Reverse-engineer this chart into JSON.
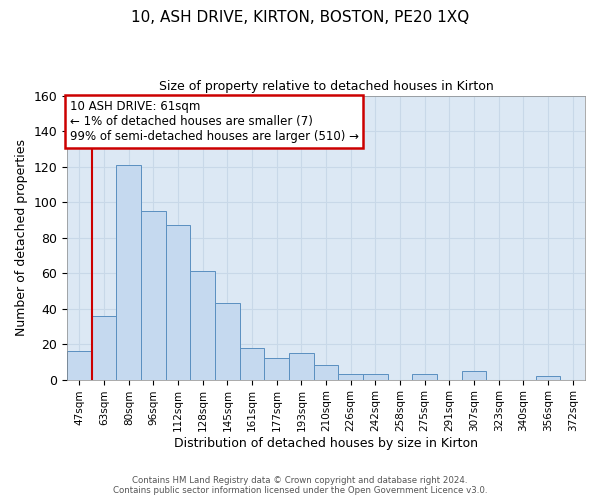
{
  "title": "10, ASH DRIVE, KIRTON, BOSTON, PE20 1XQ",
  "subtitle": "Size of property relative to detached houses in Kirton",
  "xlabel": "Distribution of detached houses by size in Kirton",
  "ylabel": "Number of detached properties",
  "bar_labels": [
    "47sqm",
    "63sqm",
    "80sqm",
    "96sqm",
    "112sqm",
    "128sqm",
    "145sqm",
    "161sqm",
    "177sqm",
    "193sqm",
    "210sqm",
    "226sqm",
    "242sqm",
    "258sqm",
    "275sqm",
    "291sqm",
    "307sqm",
    "323sqm",
    "340sqm",
    "356sqm",
    "372sqm"
  ],
  "bar_values": [
    16,
    36,
    121,
    95,
    87,
    61,
    43,
    18,
    12,
    15,
    8,
    3,
    3,
    0,
    3,
    0,
    5,
    0,
    0,
    2,
    0
  ],
  "bar_color": "#c5d9ef",
  "bar_edge_color": "#5a8fc0",
  "ylim": [
    0,
    160
  ],
  "yticks": [
    0,
    20,
    40,
    60,
    80,
    100,
    120,
    140,
    160
  ],
  "annotation_box_text": "10 ASH DRIVE: 61sqm\n← 1% of detached houses are smaller (7)\n99% of semi-detached houses are larger (510) →",
  "annotation_box_color": "#ffffff",
  "annotation_box_edge_color": "#cc0000",
  "marker_line_color": "#cc0000",
  "grid_color": "#c8d8e8",
  "background_color": "#dce8f4",
  "footer_line1": "Contains HM Land Registry data © Crown copyright and database right 2024.",
  "footer_line2": "Contains public sector information licensed under the Open Government Licence v3.0."
}
